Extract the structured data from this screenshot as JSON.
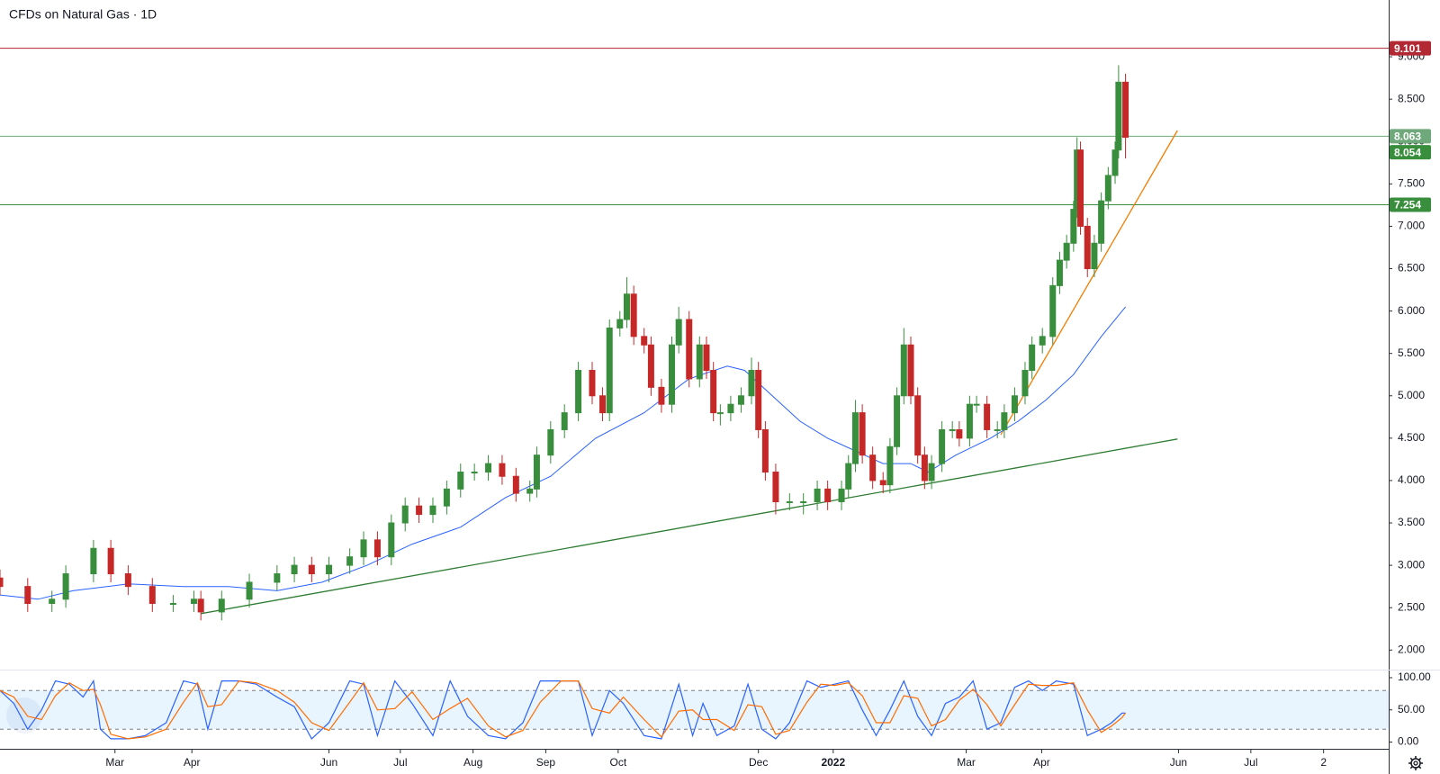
{
  "chart_data": [
    {
      "type": "candlestick",
      "title": "CFDs on Natural Gas · 1D",
      "up_color": "#388e3c",
      "down_color": "#c62828",
      "x": [
        0,
        8,
        15,
        19,
        27,
        32,
        37,
        44,
        50,
        56,
        58,
        64,
        72,
        80,
        85,
        90,
        95,
        101,
        105,
        109,
        113,
        117,
        121,
        125,
        129,
        133,
        137,
        141,
        145,
        149,
        153,
        155,
        159,
        163,
        167,
        171,
        174,
        176,
        179,
        181,
        183,
        186,
        188,
        191,
        194,
        196,
        199,
        202,
        204,
        206,
        208,
        211,
        214,
        217,
        219,
        221,
        224,
        228,
        232,
        236,
        239,
        243,
        245,
        247,
        249,
        252,
        255,
        257,
        259,
        261,
        263,
        265,
        267,
        269,
        272,
        275,
        277,
        280,
        282,
        285,
        288,
        290,
        293,
        296,
        298,
        301,
        304,
        306,
        308,
        310,
        311,
        312,
        314,
        316,
        318,
        320,
        322,
        323,
        325
      ],
      "open": [
        2.85,
        2.75,
        2.55,
        2.6,
        2.9,
        3.2,
        2.9,
        2.75,
        2.55,
        2.55,
        2.6,
        2.45,
        2.6,
        2.8,
        2.9,
        3.0,
        2.9,
        3.0,
        3.1,
        3.3,
        3.1,
        3.5,
        3.7,
        3.6,
        3.7,
        3.9,
        4.1,
        4.1,
        4.2,
        4.05,
        3.85,
        3.9,
        4.3,
        4.6,
        4.8,
        5.3,
        5.0,
        4.8,
        5.8,
        5.9,
        6.2,
        5.7,
        5.6,
        5.1,
        4.9,
        5.6,
        5.9,
        5.2,
        5.6,
        5.3,
        4.8,
        4.8,
        4.9,
        5.0,
        5.3,
        4.6,
        4.1,
        3.75,
        3.75,
        3.75,
        3.9,
        3.75,
        3.9,
        4.2,
        4.8,
        4.3,
        4.0,
        3.95,
        4.4,
        5.0,
        5.6,
        5.0,
        4.3,
        4.0,
        4.2,
        4.6,
        4.6,
        4.5,
        4.9,
        4.9,
        4.6,
        4.6,
        4.8,
        5.0,
        5.3,
        5.6,
        5.7,
        6.3,
        6.6,
        6.8,
        7.2,
        7.9,
        7.0,
        6.5,
        6.8,
        7.3,
        7.6,
        7.9,
        8.7
      ],
      "high": [
        2.95,
        2.85,
        2.7,
        3.0,
        3.3,
        3.3,
        3.0,
        2.85,
        2.65,
        2.7,
        2.7,
        2.7,
        2.9,
        3.0,
        3.1,
        3.1,
        3.1,
        3.2,
        3.4,
        3.4,
        3.6,
        3.8,
        3.8,
        3.8,
        4.0,
        4.2,
        4.2,
        4.3,
        4.3,
        4.15,
        4.0,
        4.4,
        4.7,
        4.9,
        5.4,
        5.4,
        5.1,
        5.9,
        6.0,
        6.4,
        6.3,
        5.8,
        5.7,
        5.2,
        5.7,
        6.05,
        6.0,
        5.7,
        5.7,
        5.4,
        4.9,
        5.0,
        5.1,
        5.45,
        5.4,
        4.7,
        4.2,
        3.85,
        3.85,
        4.0,
        4.0,
        4.0,
        4.3,
        4.95,
        4.9,
        4.4,
        4.1,
        4.5,
        5.1,
        5.8,
        5.7,
        5.1,
        4.4,
        4.3,
        4.7,
        4.7,
        4.7,
        5.0,
        5.0,
        5.0,
        4.7,
        4.9,
        5.1,
        5.4,
        5.7,
        5.8,
        6.4,
        6.7,
        6.9,
        7.3,
        8.05,
        8.0,
        7.1,
        6.9,
        7.4,
        7.7,
        8.0,
        8.9,
        8.8
      ],
      "low": [
        2.65,
        2.45,
        2.45,
        2.5,
        2.8,
        2.8,
        2.65,
        2.45,
        2.45,
        2.45,
        2.35,
        2.35,
        2.5,
        2.7,
        2.8,
        2.8,
        2.8,
        2.9,
        3.0,
        3.0,
        3.0,
        3.4,
        3.5,
        3.5,
        3.6,
        3.8,
        4.0,
        4.0,
        3.95,
        3.75,
        3.75,
        3.8,
        4.2,
        4.5,
        4.7,
        4.9,
        4.7,
        4.7,
        5.7,
        5.8,
        5.6,
        5.5,
        5.0,
        4.8,
        4.8,
        5.5,
        5.1,
        5.1,
        5.2,
        4.7,
        4.65,
        4.7,
        4.8,
        4.9,
        4.5,
        4.0,
        3.6,
        3.65,
        3.6,
        3.65,
        3.65,
        3.65,
        3.8,
        4.1,
        4.2,
        3.9,
        3.85,
        3.85,
        4.3,
        4.9,
        4.9,
        4.2,
        3.9,
        3.9,
        4.1,
        4.5,
        4.4,
        4.4,
        4.8,
        4.5,
        4.5,
        4.5,
        4.7,
        4.9,
        5.2,
        5.5,
        5.6,
        6.2,
        6.5,
        6.7,
        7.1,
        6.9,
        6.4,
        6.4,
        6.7,
        7.2,
        7.5,
        7.8,
        7.8
      ],
      "close": [
        2.75,
        2.55,
        2.6,
        2.9,
        3.2,
        2.9,
        2.75,
        2.55,
        2.55,
        2.6,
        2.45,
        2.6,
        2.8,
        2.9,
        3.0,
        2.9,
        3.0,
        3.1,
        3.3,
        3.1,
        3.5,
        3.7,
        3.6,
        3.7,
        3.9,
        4.1,
        4.1,
        4.2,
        4.05,
        3.85,
        3.9,
        4.3,
        4.6,
        4.8,
        5.3,
        5.0,
        4.8,
        5.8,
        5.9,
        6.2,
        5.7,
        5.6,
        5.1,
        4.9,
        5.6,
        5.9,
        5.2,
        5.6,
        5.3,
        4.8,
        4.8,
        4.9,
        5.0,
        5.3,
        4.6,
        4.1,
        3.75,
        3.75,
        3.75,
        3.9,
        3.75,
        3.9,
        4.2,
        4.8,
        4.3,
        4.0,
        3.95,
        4.4,
        5.0,
        5.6,
        5.0,
        4.3,
        4.0,
        4.2,
        4.6,
        4.6,
        4.5,
        4.9,
        4.9,
        4.6,
        4.6,
        4.8,
        5.0,
        5.3,
        5.6,
        5.7,
        6.3,
        6.6,
        6.8,
        7.2,
        7.9,
        7.0,
        6.5,
        6.8,
        7.3,
        7.6,
        7.9,
        8.7,
        8.05
      ],
      "ma": {
        "color": "#2962ff",
        "x": [
          0,
          11,
          21,
          37,
          53,
          66,
          80,
          93,
          106,
          119,
          133,
          146,
          159,
          172,
          186,
          199,
          210,
          215,
          223,
          231,
          239,
          247,
          255,
          263,
          268,
          276,
          286,
          294,
          302,
          310,
          318,
          325
        ],
        "values": [
          2.65,
          2.6,
          2.7,
          2.78,
          2.75,
          2.75,
          2.7,
          2.8,
          3.0,
          3.25,
          3.45,
          3.8,
          4.05,
          4.5,
          4.8,
          5.2,
          5.35,
          5.3,
          5.0,
          4.7,
          4.5,
          4.35,
          4.2,
          4.2,
          4.1,
          4.3,
          4.5,
          4.7,
          4.95,
          5.25,
          5.7,
          6.05
        ]
      },
      "trendlines": [
        {
          "color": "#2e7d32",
          "x": [
            58,
            340
          ],
          "values": [
            2.43,
            4.49
          ]
        },
        {
          "color": "#f57c00",
          "x": [
            289,
            340
          ],
          "values": [
            4.54,
            8.13
          ]
        }
      ],
      "levels": [
        {
          "value": 9.101,
          "color": "#b22833"
        },
        {
          "value": 8.063,
          "color": "#6fa87a"
        },
        {
          "value": 7.254,
          "color": "#388e3c"
        }
      ],
      "last": {
        "value": 8.054,
        "color": "#388e3c"
      },
      "xlim": [
        0,
        401
      ],
      "ylim": [
        1.78,
        9.67
      ],
      "yticks": [
        {
          "value": 2,
          "label": "2.000"
        },
        {
          "value": 2.5,
          "label": "2.500"
        },
        {
          "value": 3,
          "label": "3.000"
        },
        {
          "value": 3.5,
          "label": "3.500"
        },
        {
          "value": 4,
          "label": "4.000"
        },
        {
          "value": 4.5,
          "label": "4.500"
        },
        {
          "value": 5,
          "label": "5.000"
        },
        {
          "value": 5.5,
          "label": "5.500"
        },
        {
          "value": 6,
          "label": "6.000"
        },
        {
          "value": 6.5,
          "label": "6.500"
        },
        {
          "value": 7,
          "label": "7.000"
        },
        {
          "value": 7.5,
          "label": "7.500"
        },
        {
          "value": 8,
          "label": "8.000"
        },
        {
          "value": 8.5,
          "label": "8.500"
        },
        {
          "value": 9,
          "label": "9.000"
        }
      ],
      "xticks": [
        {
          "value": 33.2,
          "label": "Mar"
        },
        {
          "value": 55.4,
          "label": "Apr"
        },
        {
          "value": 95,
          "label": "Jun"
        },
        {
          "value": 115.6,
          "label": "Jul"
        },
        {
          "value": 136.6,
          "label": "Aug"
        },
        {
          "value": 157.6,
          "label": "Sep"
        },
        {
          "value": 178.5,
          "label": "Oct"
        },
        {
          "value": 219,
          "label": "Dec"
        },
        {
          "value": 240.6,
          "label": "2022"
        },
        {
          "value": 279,
          "label": "Mar"
        },
        {
          "value": 300.8,
          "label": "Apr"
        },
        {
          "value": 340.3,
          "label": "Jun"
        },
        {
          "value": 361.2,
          "label": "Jul"
        },
        {
          "value": 382.2,
          "label": "2"
        }
      ]
    },
    {
      "type": "line",
      "x": [
        0,
        4,
        8,
        12,
        16,
        20,
        24,
        27,
        29,
        32,
        37,
        42,
        48,
        53,
        57,
        60,
        64,
        69,
        74,
        80,
        85,
        90,
        95,
        101,
        105,
        109,
        114,
        119,
        125,
        130,
        135,
        141,
        146,
        151,
        156,
        162,
        167,
        171,
        176,
        180,
        186,
        191,
        196,
        200,
        203,
        207,
        212,
        216,
        220,
        224,
        228,
        233,
        237,
        241,
        245,
        249,
        253,
        257,
        261,
        265,
        269,
        273,
        277,
        281,
        285,
        289,
        293,
        297,
        301,
        305,
        310,
        314,
        318,
        321,
        324,
        325
      ],
      "series": [
        {
          "color": "#2962ff",
          "values": [
            80,
            60,
            20,
            50,
            95,
            90,
            70,
            95,
            20,
            5,
            5,
            10,
            30,
            95,
            90,
            20,
            95,
            95,
            90,
            70,
            55,
            5,
            30,
            95,
            90,
            10,
            95,
            60,
            10,
            95,
            40,
            10,
            5,
            30,
            95,
            95,
            95,
            10,
            80,
            60,
            10,
            5,
            90,
            10,
            60,
            10,
            25,
            90,
            20,
            5,
            30,
            95,
            85,
            90,
            95,
            50,
            10,
            50,
            95,
            40,
            10,
            60,
            70,
            95,
            20,
            30,
            85,
            95,
            80,
            95,
            90,
            10,
            20,
            30,
            45,
            45
          ]
        },
        {
          "color": "#ff6d00",
          "values": [
            80,
            70,
            40,
            35,
            72,
            92,
            80,
            82,
            58,
            12,
            5,
            8,
            20,
            62,
            92,
            55,
            58,
            95,
            92,
            80,
            62,
            30,
            18,
            62,
            92,
            50,
            52,
            78,
            35,
            52,
            68,
            25,
            8,
            18,
            62,
            95,
            95,
            52,
            45,
            70,
            35,
            8,
            48,
            50,
            35,
            35,
            18,
            58,
            55,
            12,
            18,
            62,
            90,
            88,
            92,
            72,
            30,
            30,
            72,
            68,
            25,
            35,
            65,
            82,
            58,
            25,
            58,
            90,
            88,
            88,
            92,
            50,
            15,
            25,
            38,
            45
          ]
        }
      ],
      "bands": [
        20,
        80
      ],
      "band_fill": "rgba(33,150,243,0.1)",
      "xlim": [
        0,
        401
      ],
      "ylim": [
        -10.5,
        111.2
      ],
      "yticks": [
        {
          "value": 0,
          "label": "0.00"
        },
        {
          "value": 50,
          "label": "50.00"
        },
        {
          "value": 100,
          "label": "100.00"
        }
      ]
    }
  ]
}
